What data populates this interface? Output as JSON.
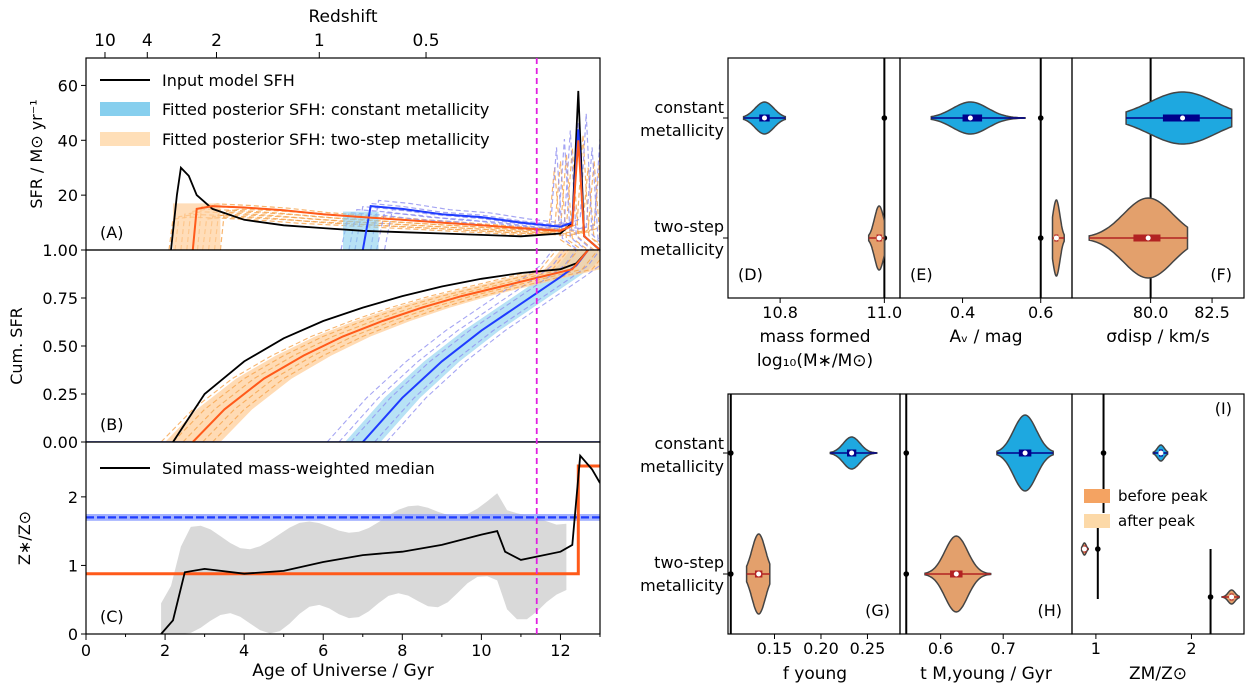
{
  "left": {
    "top_axis": {
      "label": "Redshift",
      "ticks": [
        "10",
        "4",
        "2",
        "1",
        "0.5"
      ]
    },
    "x_axis": {
      "label": "Age of Universe / Gyr",
      "ticks": [
        "0",
        "2",
        "4",
        "6",
        "8",
        "10",
        "12"
      ]
    },
    "panelA": {
      "tag": "(A)",
      "ylabel": "SFR / M⊙ yr⁻¹",
      "yticks": [
        "1.00",
        "20",
        "40",
        "60"
      ],
      "legend": [
        "Input model SFH",
        "Fitted posterior SFH: constant metallicity",
        "Fitted posterior SFH: two-step metallicity"
      ]
    },
    "panelB": {
      "tag": "(B)",
      "ylabel": "Cum. SFR",
      "yticks": [
        "0.00",
        "0.25",
        "0.50",
        "0.75"
      ]
    },
    "panelC": {
      "tag": "(C)",
      "ylabel": "Z∗/Z⊙",
      "yticks": [
        "0",
        "1",
        "2"
      ],
      "legend": [
        "Simulated mass-weighted median"
      ]
    }
  },
  "right": {
    "row_labels": [
      [
        "constant",
        "metallicity"
      ],
      [
        "two-step",
        "metallicity"
      ]
    ],
    "legend": [
      "before peak",
      "after peak"
    ],
    "panels": [
      {
        "tag": "(D)",
        "xlabel": [
          "mass formed",
          "log₁₀(M∗/M⊙)"
        ],
        "ticks": [
          "10.8",
          "11.0"
        ]
      },
      {
        "tag": "(E)",
        "xlabel": [
          "Aᵥ / mag"
        ],
        "ticks": [
          "0.4",
          "0.6"
        ]
      },
      {
        "tag": "(F)",
        "xlabel": [
          "σdisp / km/s"
        ],
        "ticks": [
          "80.0",
          "82.5"
        ]
      },
      {
        "tag": "(G)",
        "xlabel": [
          "f young"
        ],
        "ticks": [
          "0.15",
          "0.20",
          "0.25"
        ]
      },
      {
        "tag": "(H)",
        "xlabel": [
          "t M,young / Gyr"
        ],
        "ticks": [
          "0.6",
          "0.7"
        ]
      },
      {
        "tag": "(I)",
        "xlabel": [
          "ZM/Z⊙"
        ],
        "ticks": [
          "1",
          "2"
        ]
      }
    ]
  },
  "colors": {
    "const": "#1f3cff",
    "const_band": "#87cfee",
    "step": "#ff5a1a",
    "step_band": "#ffcf9b",
    "violin_blue": "#1ea8e0",
    "violin_orange": "#e3a06c",
    "grey": "#d9d9d9",
    "magenta": "#e020e0",
    "before_peak": "#f4a362",
    "after_peak": "#fcd9a8"
  },
  "chart_data": [
    {
      "type": "line",
      "panel": "A",
      "xlim": [
        0,
        13
      ],
      "ylim": [
        0,
        70
      ],
      "series": [
        {
          "name": "Input model SFH",
          "x": [
            2.15,
            2.3,
            2.4,
            2.6,
            2.8,
            3.2,
            4,
            5,
            6,
            7,
            8,
            9,
            10,
            11,
            12,
            12.3,
            12.45,
            12.6,
            13
          ],
          "y": [
            0,
            20,
            30,
            27,
            20,
            15,
            11,
            9,
            8,
            7,
            6.5,
            6,
            5.5,
            5,
            6,
            10,
            58,
            5,
            0
          ]
        },
        {
          "name": "Fitted posterior SFH: constant metallicity",
          "x": [
            7.0,
            7.2,
            8,
            9,
            10,
            11,
            12,
            12.3,
            12.45,
            12.6,
            13
          ],
          "y": [
            0,
            16,
            15,
            13,
            12,
            10,
            8.5,
            10,
            44,
            5,
            0
          ]
        },
        {
          "name": "Fitted posterior SFH: two-step metallicity",
          "x": [
            2.7,
            2.8,
            3.2,
            4,
            5,
            6,
            7,
            8,
            9,
            10,
            11,
            12,
            12.3,
            12.45,
            12.6,
            13
          ],
          "y": [
            0,
            15,
            16,
            15.5,
            14.5,
            13,
            12,
            11,
            10,
            9,
            8,
            7,
            9,
            40,
            5,
            0
          ]
        }
      ]
    },
    {
      "type": "line",
      "panel": "B",
      "xlim": [
        0,
        13
      ],
      "ylim": [
        0,
        1
      ],
      "series": [
        {
          "name": "Input model SFH",
          "x": [
            2.2,
            3,
            4,
            5,
            6,
            7,
            8,
            9,
            10,
            11,
            12,
            12.4,
            12.7
          ],
          "y": [
            0,
            0.25,
            0.42,
            0.54,
            0.63,
            0.7,
            0.76,
            0.81,
            0.85,
            0.88,
            0.9,
            0.93,
            1
          ]
        },
        {
          "name": "Fitted posterior SFH: constant metallicity",
          "x": [
            7.0,
            8,
            9,
            10,
            11,
            12,
            12.4,
            12.7
          ],
          "y": [
            0,
            0.23,
            0.42,
            0.58,
            0.72,
            0.86,
            0.92,
            1
          ]
        },
        {
          "name": "Fitted posterior SFH: two-step metallicity",
          "x": [
            2.7,
            3.5,
            4.5,
            5.5,
            6.5,
            7.5,
            8.5,
            9.5,
            10.5,
            11.5,
            12.3,
            12.7
          ],
          "y": [
            0,
            0.17,
            0.33,
            0.45,
            0.55,
            0.63,
            0.7,
            0.76,
            0.81,
            0.86,
            0.9,
            1
          ]
        }
      ]
    },
    {
      "type": "line",
      "panel": "C",
      "xlim": [
        0,
        13
      ],
      "ylim": [
        0,
        2.8
      ],
      "series": [
        {
          "name": "Simulated mass-weighted median",
          "x": [
            1.9,
            2.2,
            2.5,
            3,
            4,
            5,
            6,
            7,
            8,
            9,
            10,
            10.4,
            10.6,
            11,
            12,
            12.3,
            12.5,
            12.8,
            13
          ],
          "y": [
            0,
            0.2,
            0.9,
            0.95,
            0.88,
            0.92,
            1.05,
            1.15,
            1.2,
            1.3,
            1.45,
            1.5,
            1.2,
            1.08,
            1.2,
            1.3,
            2.6,
            2.4,
            2.2
          ]
        },
        {
          "name": "Fitted posterior SFH: constant metallicity",
          "x": [
            0,
            13
          ],
          "y": [
            1.7,
            1.7
          ]
        },
        {
          "name": "Fitted posterior SFH: two-step metallicity",
          "x": [
            0,
            12.45,
            12.45,
            13
          ],
          "y": [
            0.88,
            0.88,
            2.45,
            2.45
          ]
        }
      ],
      "vline_x": 11.4
    },
    {
      "type": "violin",
      "panels": [
        {
          "tag": "(D)",
          "xlim": [
            10.7,
            11.03
          ],
          "truth": 11.0,
          "constant": {
            "median": 10.77,
            "q1": 10.76,
            "q3": 10.78,
            "min": 10.73,
            "max": 10.81
          },
          "two_step": {
            "median": 10.99,
            "q1": 10.985,
            "q3": 10.995,
            "min": 10.97,
            "max": 11.0
          }
        },
        {
          "tag": "(E)",
          "xlim": [
            0.24,
            0.68
          ],
          "truth": 0.6,
          "constant": {
            "median": 0.42,
            "q1": 0.4,
            "q3": 0.45,
            "min": 0.32,
            "max": 0.56
          },
          "two_step": {
            "median": 0.64,
            "q1": 0.635,
            "q3": 0.645,
            "min": 0.63,
            "max": 0.66
          }
        },
        {
          "tag": "(F)",
          "xlim": [
            76.8,
            83.8
          ],
          "truth": 80.0,
          "constant": {
            "median": 81.3,
            "q1": 80.5,
            "q3": 82.0,
            "min": 79.0,
            "max": 83.3
          },
          "two_step": {
            "median": 79.9,
            "q1": 79.3,
            "q3": 80.4,
            "min": 77.5,
            "max": 81.5
          }
        }
      ]
    },
    {
      "type": "violin",
      "panels": [
        {
          "tag": "(G)",
          "xlim": [
            0.1,
            0.285
          ],
          "truth": 0.103,
          "constant": {
            "median": 0.233,
            "q1": 0.228,
            "q3": 0.238,
            "min": 0.21,
            "max": 0.26
          },
          "two_step": {
            "median": 0.133,
            "q1": 0.129,
            "q3": 0.137,
            "min": 0.12,
            "max": 0.145
          }
        },
        {
          "tag": "(H)",
          "xlim": [
            0.535,
            0.81
          ],
          "truth": 0.545,
          "constant": {
            "median": 0.735,
            "q1": 0.725,
            "q3": 0.745,
            "min": 0.69,
            "max": 0.78
          },
          "two_step": {
            "median": 0.625,
            "q1": 0.615,
            "q3": 0.635,
            "min": 0.575,
            "max": 0.68
          }
        },
        {
          "tag": "(I)",
          "xlim": [
            0.75,
            2.55
          ],
          "truth_const": 1.08,
          "truth_before": 1.02,
          "truth_after": 2.2,
          "constant": {
            "median": 1.68,
            "q1": 1.66,
            "q3": 1.7,
            "min": 1.6,
            "max": 1.75
          },
          "two_step_before": {
            "median": 0.88,
            "q1": 0.87,
            "q3": 0.89,
            "min": 0.85,
            "max": 0.92
          },
          "two_step_after": {
            "median": 2.42,
            "q1": 2.4,
            "q3": 2.44,
            "min": 2.32,
            "max": 2.5
          }
        }
      ]
    }
  ]
}
